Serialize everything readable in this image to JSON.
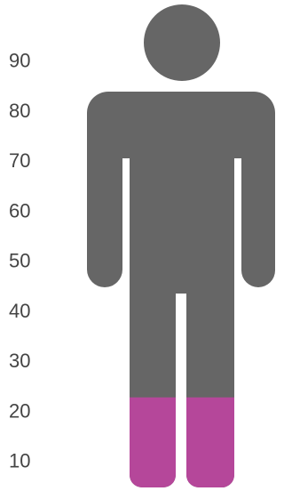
{
  "chart_data": {
    "type": "pictograph",
    "value": 23,
    "color": "#b5479a",
    "base_color": "#666666",
    "ylim": [
      5,
      101
    ],
    "yticks": [
      10,
      20,
      30,
      40,
      50,
      60,
      70,
      80,
      90
    ]
  }
}
